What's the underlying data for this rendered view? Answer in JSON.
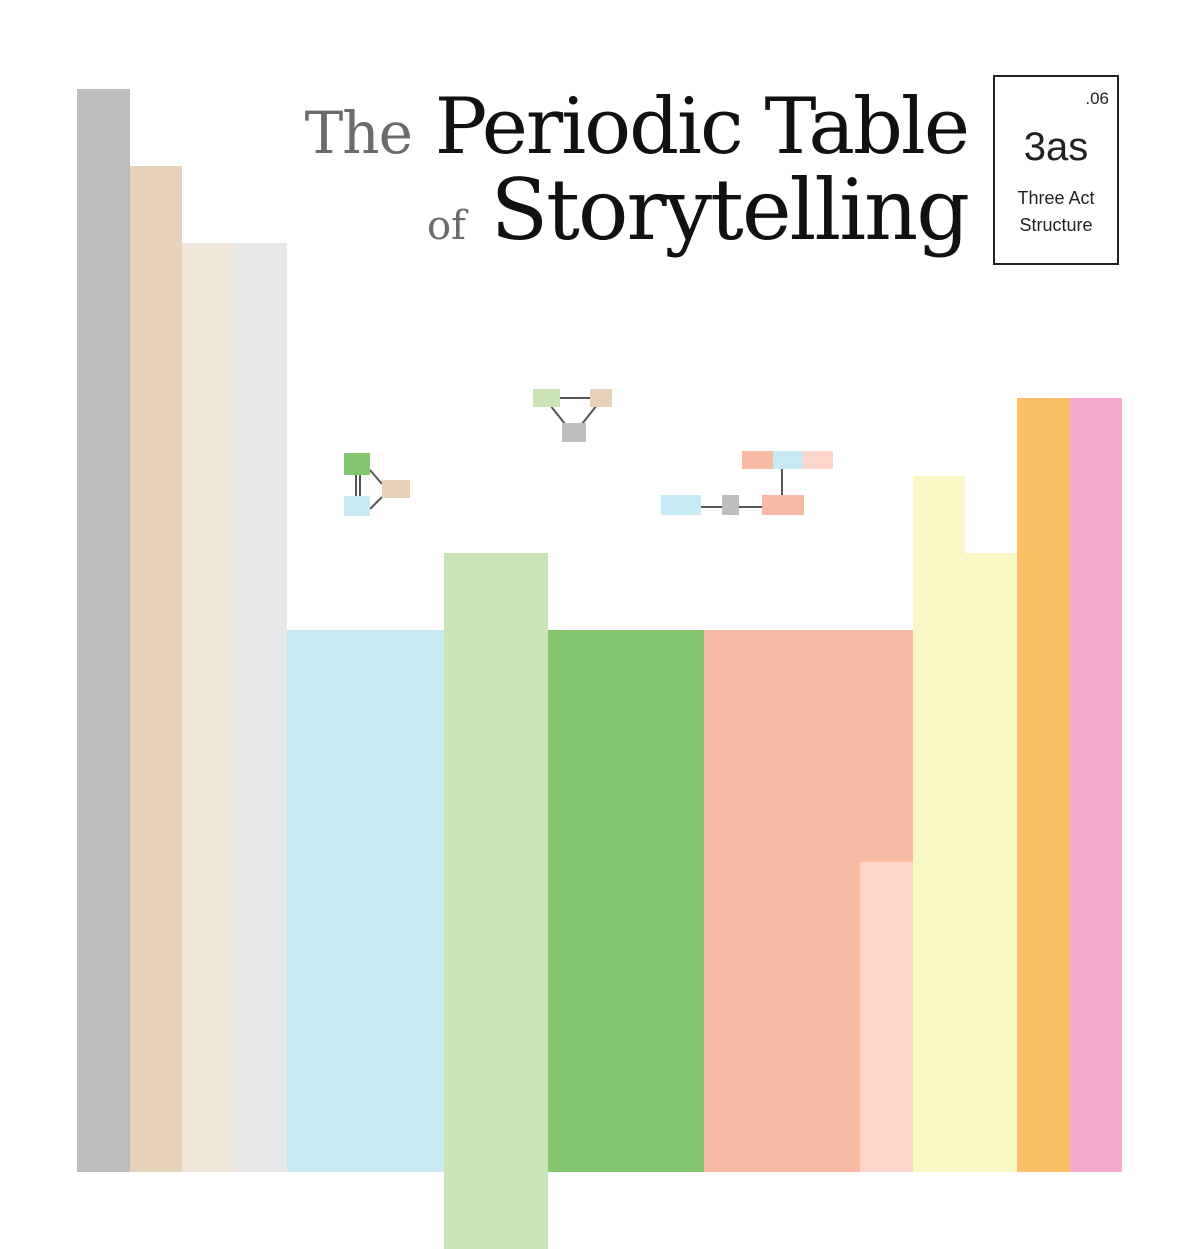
{
  "title": {
    "line1_small": "The",
    "line1_large": "Periodic Table",
    "line2_small": "of",
    "line2_large": "Storytelling"
  },
  "element": {
    "number": ".06",
    "symbol": "3as",
    "name_line1": "Three Act",
    "name_line2": "Structure"
  },
  "colors": {
    "gray": "#bdbec0",
    "tan": "#e5d2b8",
    "cream": "#f0e6da",
    "light_gray": "#e7e8ea",
    "light_blue": "#c7e9f3",
    "light_green": "#cce5b7",
    "green": "#85c771",
    "salmon": "#f7baa3",
    "light_salmon": "#fbd6c9",
    "light_yellow": "#f9f7c3",
    "orange": "#fcbf67",
    "pink": "#f5abcf",
    "connector": "#555555"
  }
}
